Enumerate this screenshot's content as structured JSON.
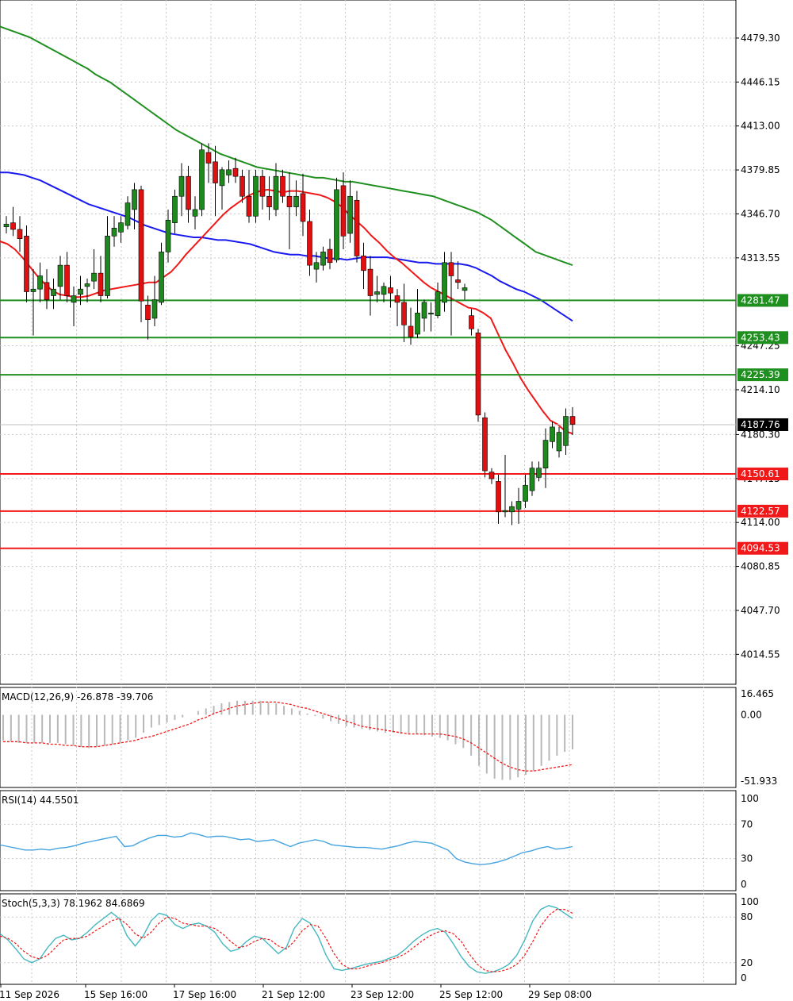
{
  "colors": {
    "bull": "#1e8a1e",
    "bear": "#e01010",
    "ma_fast": "#f01818",
    "ma_mid": "#1a1aee",
    "ma_slow": "#1f8f1f",
    "resistance": "#1f8f1f",
    "support": "#f01818",
    "current": "#000000",
    "macd_hist": "#b8b8b8",
    "macd_signal": "#f01818",
    "rsi": "#45a3e0",
    "stoch_main": "#45b8c0",
    "stoch_signal": "#f01818"
  },
  "time_labels": [
    "11 Sep 2026",
    "15 Sep 16:00",
    "17 Sep 16:00",
    "21 Sep 12:00",
    "23 Sep 12:00",
    "25 Sep 12:00",
    "29 Sep 08:00"
  ],
  "chart_data": [
    {
      "type": "candlestick",
      "title": "",
      "ylim": [
        3992,
        4508
      ],
      "y_ticks": [
        "4479.30",
        "4446.15",
        "4413.00",
        "4379.85",
        "4346.70",
        "4313.55",
        "4247.25",
        "4214.10",
        "4180.30",
        "4147.15",
        "4114.00",
        "4080.85",
        "4047.70",
        "4014.55"
      ],
      "levels": {
        "resistance": [
          "4281.47",
          "4253.43",
          "4225.39"
        ],
        "support": [
          "4150.61",
          "4122.57",
          "4094.53"
        ],
        "current": "4187.76"
      },
      "ohlc": [
        [
          4337,
          4345,
          4332,
          4339
        ],
        [
          4340,
          4352,
          4330,
          4335
        ],
        [
          4335,
          4345,
          4318,
          4328
        ],
        [
          4330,
          4338,
          4280,
          4288
        ],
        [
          4288,
          4305,
          4255,
          4290
        ],
        [
          4290,
          4310,
          4280,
          4300
        ],
        [
          4295,
          4305,
          4275,
          4282
        ],
        [
          4285,
          4298,
          4275,
          4290
        ],
        [
          4292,
          4315,
          4282,
          4308
        ],
        [
          4308,
          4318,
          4280,
          4285
        ],
        [
          4280,
          4292,
          4262,
          4285
        ],
        [
          4286,
          4300,
          4278,
          4290
        ],
        [
          4292,
          4298,
          4280,
          4294
        ],
        [
          4296,
          4320,
          4290,
          4302
        ],
        [
          4302,
          4315,
          4280,
          4285
        ],
        [
          4285,
          4345,
          4283,
          4330
        ],
        [
          4330,
          4345,
          4322,
          4336
        ],
        [
          4333,
          4345,
          4325,
          4340
        ],
        [
          4338,
          4360,
          4335,
          4355
        ],
        [
          4350,
          4370,
          4335,
          4365
        ],
        [
          4365,
          4368,
          4265,
          4281
        ],
        [
          4278,
          4285,
          4252,
          4267
        ],
        [
          4268,
          4300,
          4262,
          4282
        ],
        [
          4280,
          4325,
          4278,
          4318
        ],
        [
          4318,
          4350,
          4310,
          4342
        ],
        [
          4340,
          4365,
          4332,
          4360
        ],
        [
          4360,
          4385,
          4345,
          4375
        ],
        [
          4375,
          4383,
          4340,
          4350
        ],
        [
          4345,
          4360,
          4335,
          4350
        ],
        [
          4350,
          4400,
          4345,
          4395
        ],
        [
          4393,
          4400,
          4370,
          4385
        ],
        [
          4386,
          4398,
          4345,
          4370
        ],
        [
          4368,
          4382,
          4350,
          4380
        ],
        [
          4376,
          4387,
          4370,
          4380
        ],
        [
          4381,
          4389,
          4370,
          4375
        ],
        [
          4375,
          4380,
          4355,
          4360
        ],
        [
          4360,
          4380,
          4340,
          4345
        ],
        [
          4345,
          4380,
          4340,
          4375
        ],
        [
          4375,
          4380,
          4350,
          4360
        ],
        [
          4360,
          4375,
          4342,
          4352
        ],
        [
          4350,
          4385,
          4345,
          4375
        ],
        [
          4375,
          4380,
          4355,
          4360
        ],
        [
          4360,
          4378,
          4320,
          4352
        ],
        [
          4352,
          4372,
          4345,
          4360
        ],
        [
          4362,
          4377,
          4330,
          4341
        ],
        [
          4341,
          4350,
          4300,
          4308
        ],
        [
          4305,
          4318,
          4295,
          4310
        ],
        [
          4308,
          4322,
          4304,
          4318
        ],
        [
          4320,
          4328,
          4305,
          4310
        ],
        [
          4312,
          4374,
          4310,
          4365
        ],
        [
          4368,
          4378,
          4320,
          4330
        ],
        [
          4332,
          4372,
          4325,
          4360
        ],
        [
          4357,
          4364,
          4310,
          4315
        ],
        [
          4315,
          4325,
          4290,
          4304
        ],
        [
          4305,
          4315,
          4270,
          4285
        ],
        [
          4286,
          4300,
          4280,
          4288
        ],
        [
          4286,
          4295,
          4280,
          4292
        ],
        [
          4291,
          4300,
          4276,
          4287
        ],
        [
          4285,
          4290,
          4262,
          4280
        ],
        [
          4280,
          4294,
          4250,
          4263
        ],
        [
          4262,
          4276,
          4248,
          4254
        ],
        [
          4256,
          4290,
          4253,
          4272
        ],
        [
          4268,
          4282,
          4258,
          4280
        ],
        [
          4272,
          4280,
          4258,
          4272
        ],
        [
          4270,
          4295,
          4268,
          4288
        ],
        [
          4280,
          4318,
          4273,
          4310
        ],
        [
          4310,
          4318,
          4255,
          4300
        ],
        [
          4297,
          4311,
          4290,
          4295
        ],
        [
          4289,
          4294,
          4282,
          4291
        ],
        [
          4270,
          4275,
          4255,
          4260
        ],
        [
          4257,
          4260,
          4190,
          4195
        ],
        [
          4193,
          4197,
          4148,
          4153
        ],
        [
          4152,
          4155,
          4143,
          4147
        ],
        [
          4145,
          4150,
          4113,
          4122
        ],
        [
          4122,
          4165,
          4118,
          4123
        ],
        [
          4122,
          4130,
          4112,
          4126
        ],
        [
          4124,
          4140,
          4113,
          4130
        ],
        [
          4130,
          4150,
          4125,
          4142
        ],
        [
          4138,
          4160,
          4134,
          4155
        ],
        [
          4148,
          4160,
          4145,
          4155
        ],
        [
          4155,
          4185,
          4140,
          4176
        ],
        [
          4175,
          4190,
          4170,
          4186
        ],
        [
          4168,
          4186,
          4163,
          4182
        ],
        [
          4172,
          4200,
          4165,
          4194
        ],
        [
          4194,
          4201,
          4180,
          4188
        ]
      ],
      "ma_fast": [
        4326,
        4324,
        4320,
        4314,
        4307,
        4300,
        4294,
        4289,
        4286,
        4285,
        4284,
        4284,
        4285,
        4287,
        4289,
        4290,
        4291,
        4292,
        4293,
        4294,
        4295,
        4295,
        4299,
        4303,
        4309,
        4316,
        4322,
        4328,
        4334,
        4340,
        4346,
        4351,
        4355,
        4359,
        4362,
        4364,
        4365,
        4364,
        4363,
        4364,
        4364,
        4363,
        4362,
        4361,
        4359,
        4356,
        4352,
        4346,
        4341,
        4336,
        4330,
        4325,
        4319,
        4314,
        4310,
        4305,
        4300,
        4295,
        4291,
        4288,
        4285,
        4282,
        4279,
        4276,
        4275,
        4272,
        4268,
        4256,
        4244,
        4234,
        4223,
        4214,
        4206,
        4198,
        4191,
        4188,
        4183,
        4181
      ],
      "ma_mid": [
        4378,
        4378,
        4377,
        4376,
        4374,
        4372,
        4369,
        4366,
        4363,
        4360,
        4357,
        4354,
        4352,
        4350,
        4348,
        4346,
        4344,
        4341,
        4338,
        4336,
        4334,
        4332,
        4331,
        4330,
        4329,
        4329,
        4328,
        4327,
        4327,
        4326,
        4325,
        4324,
        4322,
        4320,
        4318,
        4317,
        4316,
        4316,
        4315,
        4315,
        4314,
        4313,
        4313,
        4312,
        4313,
        4314,
        4314,
        4314,
        4314,
        4313,
        4312,
        4311,
        4310,
        4310,
        4309,
        4309,
        4309,
        4309,
        4308,
        4306,
        4303,
        4300,
        4296,
        4293,
        4290,
        4288,
        4285,
        4282,
        4278,
        4274,
        4270,
        4266
      ],
      "ma_slow": [
        4488,
        4486,
        4484,
        4482,
        4480,
        4477,
        4474,
        4471,
        4468,
        4465,
        4462,
        4459,
        4456,
        4452,
        4449,
        4446,
        4442,
        4438,
        4434,
        4430,
        4426,
        4422,
        4418,
        4414,
        4410,
        4407,
        4404,
        4401,
        4398,
        4395,
        4392,
        4390,
        4388,
        4386,
        4384,
        4382,
        4381,
        4380,
        4379,
        4378,
        4377,
        4376,
        4375,
        4374,
        4374,
        4373,
        4372,
        4371,
        4371,
        4370,
        4369,
        4368,
        4367,
        4366,
        4365,
        4364,
        4363,
        4362,
        4361,
        4360,
        4358,
        4356,
        4354,
        4352,
        4350,
        4348,
        4345,
        4342,
        4338,
        4334,
        4330,
        4326,
        4322,
        4318,
        4316,
        4314,
        4312,
        4310,
        4308
      ]
    },
    {
      "type": "bar",
      "title": "MACD(12,26,9) -26.878 -39.706",
      "ylim": [
        -51.933,
        16.465
      ],
      "y_ticks": [
        "16.465",
        "0.00",
        "-51.933"
      ],
      "histogram": [
        -20,
        -21,
        -22,
        -22,
        -22,
        -22,
        -22,
        -22,
        -23,
        -24,
        -25,
        -26,
        -25,
        -24,
        -23,
        -22,
        -20,
        -18,
        -14,
        -10,
        -8,
        -6,
        -4,
        -2,
        0,
        3,
        5,
        7,
        9,
        10,
        11,
        11,
        11,
        11,
        10,
        9,
        7,
        5,
        3,
        1,
        -1,
        -3,
        -5,
        -7,
        -9,
        -10,
        -11,
        -12,
        -13,
        -14,
        -14,
        -15,
        -15,
        -15,
        -16,
        -17,
        -18,
        -20,
        -23,
        -26,
        -32,
        -40,
        -46,
        -50,
        -51,
        -51,
        -49,
        -47,
        -44,
        -40,
        -36,
        -32,
        -29,
        -27
      ],
      "signal": [
        -21,
        -21,
        -21,
        -22,
        -22,
        -22,
        -23,
        -23,
        -24,
        -24,
        -25,
        -25,
        -25,
        -24,
        -23,
        -22,
        -21,
        -20,
        -18,
        -17,
        -15,
        -13,
        -11,
        -9,
        -7,
        -4,
        -2,
        1,
        3,
        5,
        7,
        8,
        9,
        10,
        10,
        10,
        9,
        8,
        6,
        5,
        3,
        1,
        -1,
        -3,
        -5,
        -7,
        -9,
        -10,
        -11,
        -12,
        -13,
        -14,
        -15,
        -15,
        -15,
        -15,
        -15,
        -16,
        -17,
        -19,
        -22,
        -26,
        -30,
        -34,
        -38,
        -41,
        -43,
        -44,
        -44,
        -43,
        -42,
        -41,
        -40,
        -39
      ]
    },
    {
      "type": "line",
      "title": "RSI(14) 44.5501",
      "ylim": [
        0,
        100
      ],
      "y_ticks": [
        "100",
        "70",
        "30",
        "0"
      ],
      "values": [
        46,
        44,
        42,
        40,
        40,
        41,
        40,
        42,
        43,
        45,
        48,
        50,
        52,
        54,
        56,
        44,
        45,
        50,
        54,
        57,
        57,
        55,
        56,
        60,
        58,
        55,
        56,
        56,
        54,
        52,
        53,
        50,
        51,
        52,
        48,
        44,
        48,
        50,
        52,
        50,
        46,
        45,
        44,
        43,
        43,
        42,
        41,
        43,
        45,
        48,
        50,
        49,
        48,
        44,
        40,
        30,
        26,
        24,
        23,
        24,
        26,
        29,
        33,
        37,
        39,
        42,
        44,
        41,
        42,
        44
      ]
    },
    {
      "type": "line",
      "title": "Stoch(5,3,3) 78.1962 84.6869",
      "ylim": [
        0,
        100
      ],
      "y_ticks": [
        "100",
        "80",
        "20",
        "0"
      ],
      "main": [
        58,
        50,
        38,
        25,
        20,
        25,
        40,
        52,
        56,
        50,
        52,
        60,
        70,
        78,
        86,
        78,
        55,
        42,
        55,
        75,
        85,
        82,
        70,
        65,
        70,
        72,
        68,
        60,
        45,
        35,
        38,
        48,
        55,
        52,
        42,
        32,
        40,
        65,
        78,
        72,
        55,
        30,
        12,
        10,
        12,
        15,
        18,
        20,
        22,
        26,
        30,
        38,
        48,
        56,
        62,
        65,
        60,
        45,
        28,
        15,
        8,
        6,
        8,
        12,
        18,
        30,
        50,
        75,
        90,
        95,
        92,
        85,
        78
      ],
      "signal": [
        55,
        52,
        45,
        35,
        28,
        25,
        30,
        40,
        50,
        52,
        52,
        55,
        62,
        68,
        75,
        78,
        70,
        58,
        52,
        60,
        72,
        80,
        78,
        72,
        70,
        68,
        68,
        65,
        58,
        48,
        40,
        42,
        48,
        52,
        50,
        42,
        38,
        48,
        62,
        70,
        68,
        52,
        32,
        18,
        12,
        12,
        15,
        18,
        20,
        24,
        27,
        32,
        40,
        48,
        55,
        60,
        62,
        58,
        48,
        32,
        18,
        10,
        8,
        9,
        12,
        18,
        30,
        48,
        68,
        82,
        90,
        90,
        85
      ]
    }
  ]
}
